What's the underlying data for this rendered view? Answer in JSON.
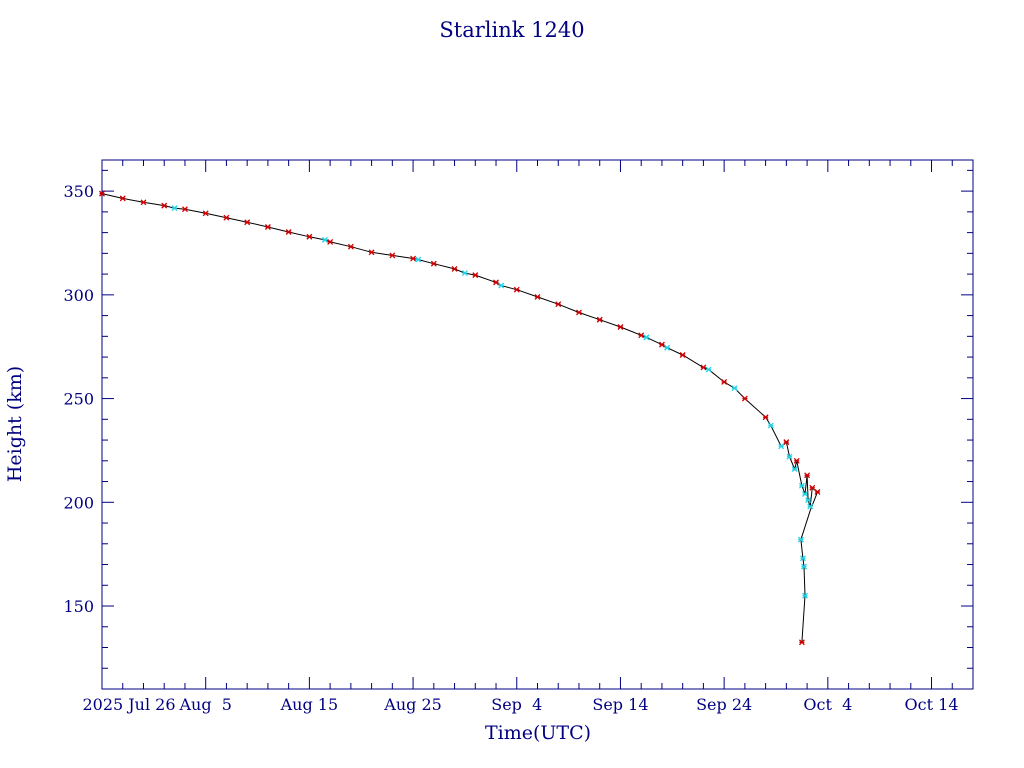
{
  "chart_data": {
    "type": "scatter",
    "title": "Starlink 1240",
    "xlabel": "Time(UTC)",
    "ylabel": "Height (km)",
    "x_tick_labels": [
      "2025 Jul 26",
      "Aug  5",
      "Aug 15",
      "Aug 25",
      "Sep  4",
      "Sep 14",
      "Sep 24",
      "Oct  4",
      "Oct 14"
    ],
    "x_tick_days": [
      0,
      10,
      20,
      30,
      40,
      50,
      60,
      70,
      80
    ],
    "xlim_days": [
      0,
      84
    ],
    "ylim": [
      110,
      365
    ],
    "y_ticks": [
      150,
      200,
      250,
      300,
      350
    ],
    "grid": false,
    "colors": {
      "axes": "#000080",
      "line": "#000000",
      "series_red": "#cc0000",
      "series_cyan": "#22d3e6"
    },
    "series": [
      {
        "color": "red",
        "points": [
          [
            0,
            348.8
          ],
          [
            2,
            346.5
          ],
          [
            4,
            344.6
          ],
          [
            6,
            343.0
          ],
          [
            8,
            341.3
          ],
          [
            10,
            339.3
          ],
          [
            12,
            337.2
          ],
          [
            14,
            335.0
          ],
          [
            16,
            332.7
          ],
          [
            18,
            330.3
          ],
          [
            20,
            328.0
          ],
          [
            22,
            325.5
          ],
          [
            24,
            323.2
          ],
          [
            26,
            320.5
          ],
          [
            28,
            319.0
          ],
          [
            30,
            317.5
          ],
          [
            32,
            315.0
          ],
          [
            34,
            312.5
          ],
          [
            36,
            309.5
          ],
          [
            38,
            306.0
          ],
          [
            40,
            302.5
          ],
          [
            42,
            299.0
          ],
          [
            44,
            295.5
          ],
          [
            46,
            291.5
          ],
          [
            48,
            288.0
          ],
          [
            50,
            284.5
          ],
          [
            52,
            280.5
          ],
          [
            54,
            276.0
          ],
          [
            56,
            271.0
          ],
          [
            58,
            265.0
          ],
          [
            60,
            258.0
          ],
          [
            62,
            250.0
          ],
          [
            64,
            241.0
          ],
          [
            66,
            229.0
          ],
          [
            67,
            220.0
          ],
          [
            68,
            213.0
          ],
          [
            68.5,
            207.0
          ],
          [
            69,
            205.0
          ],
          [
            67.5,
            132.5
          ]
        ]
      },
      {
        "color": "cyan",
        "points": [
          [
            7,
            341.8
          ],
          [
            21.5,
            326.5
          ],
          [
            30.5,
            317.0
          ],
          [
            35,
            310.5
          ],
          [
            38.5,
            304.5
          ],
          [
            52.5,
            279.5
          ],
          [
            54.5,
            274.5
          ],
          [
            58.5,
            264.0
          ],
          [
            61,
            255.0
          ],
          [
            64.5,
            237.0
          ],
          [
            65.5,
            227.0
          ],
          [
            66.3,
            222.0
          ],
          [
            66.8,
            216.0
          ],
          [
            67.5,
            208.0
          ],
          [
            67.8,
            204.0
          ],
          [
            68.1,
            201.0
          ],
          [
            68.3,
            198.0
          ],
          [
            67.4,
            182.0
          ],
          [
            67.6,
            173.0
          ],
          [
            67.7,
            169.0
          ],
          [
            67.8,
            155.0
          ]
        ]
      }
    ]
  }
}
